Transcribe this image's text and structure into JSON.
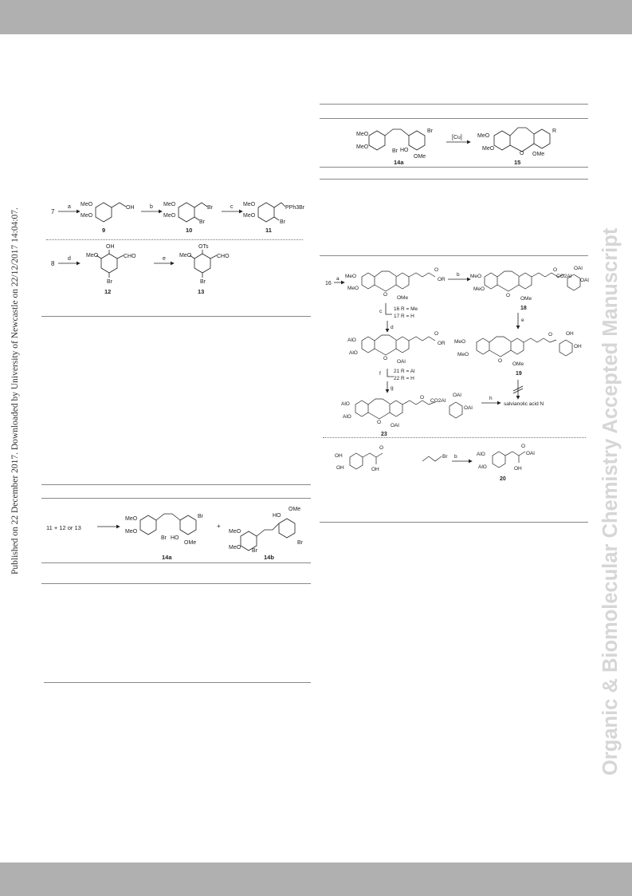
{
  "watermark": {
    "left_text": "Published on 22 December 2017. Downloaded by University of Newcastle on 22/12/2017 14:04:07.",
    "right_text": "Organic & Biomolecular Chemistry Accepted Manuscript"
  },
  "scheme_a": {
    "row1": {
      "start_label": "7",
      "arrow1_label": "a",
      "arrow2_label": "b",
      "arrow3_label": "c",
      "compound_labels": [
        "9",
        "10",
        "11"
      ],
      "groups": [
        "MeO",
        "MeO",
        "OH",
        "Br",
        "Br",
        "PPh3Br"
      ]
    },
    "row2": {
      "start_label": "8",
      "arrow1_label": "d",
      "arrow2_label": "e",
      "compound_labels": [
        "12",
        "13"
      ],
      "groups": [
        "MeO",
        "OH",
        "CHO",
        "Br",
        "OTs"
      ]
    }
  },
  "table_left": {
    "reactants": "11 + 12 or 13",
    "plus": "+",
    "compound_labels": [
      "14a",
      "14b"
    ],
    "groups": [
      "MeO",
      "MeO",
      "Br",
      "HO",
      "OMe",
      "Br"
    ]
  },
  "table_right": {
    "reagent": "[Cu]",
    "compound_labels": [
      "14a",
      "15"
    ],
    "groups": [
      "MeO",
      "MeO",
      "Br",
      "HO",
      "OMe",
      "Br",
      "R"
    ]
  },
  "scheme_b": {
    "start_label": "16",
    "arrow_a_label": "a",
    "arrow_b_label": "b",
    "arrow_c_label": "c",
    "arrow_d_label": "d",
    "arrow_e_label": "e",
    "arrow_f_label": "f",
    "arrow_g_label": "g",
    "arrow_h_label": "h",
    "step_16": "16 R = Me",
    "step_17": "17 R = H",
    "step_21": "21 R = Al",
    "step_22": "22 R = H",
    "compound_labels": [
      "18",
      "19",
      "23",
      "20"
    ],
    "product_text": "salvianolic acid N",
    "groups": [
      "MeO",
      "MeO",
      "OMe",
      "OH",
      "OAl",
      "OR",
      "AlO",
      "CO2Al",
      "O",
      "Br"
    ]
  }
}
